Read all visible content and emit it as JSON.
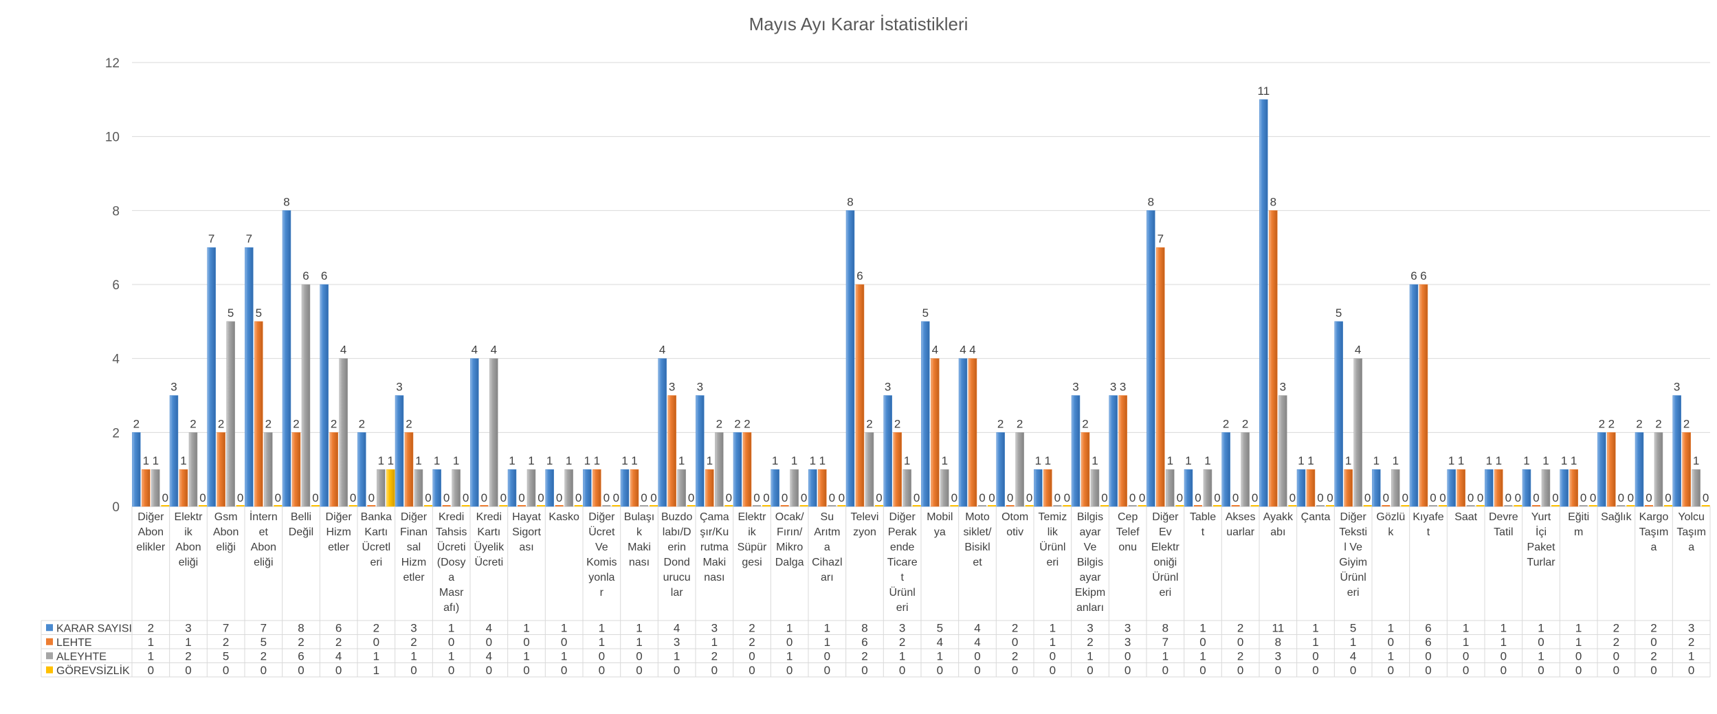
{
  "chart_data": {
    "type": "bar",
    "title": "Mayıs Ayı Karar İstatistikleri",
    "ylim": [
      0,
      12
    ],
    "yticks": [
      0,
      2,
      4,
      6,
      8,
      10,
      12
    ],
    "grid": true,
    "legend": "data-table-below",
    "categories": [
      [
        "Diğer",
        "Abon",
        "elikler"
      ],
      [
        "Elektr",
        "ik",
        "Abon",
        "eliği"
      ],
      [
        "Gsm",
        "Abon",
        "eliği"
      ],
      [
        "İntern",
        "et",
        "Abon",
        "eliği"
      ],
      [
        "Belli",
        "Değil"
      ],
      [
        "Diğer",
        "Hizm",
        "etler"
      ],
      [
        "Banka",
        "Kartı",
        "Ücretl",
        "eri"
      ],
      [
        "Diğer",
        "Finan",
        "sal",
        "Hizm",
        "etler"
      ],
      [
        "Kredi",
        "Tahsis",
        "Ücreti",
        "(Dosy",
        "a",
        "Masr",
        "afı)"
      ],
      [
        "Kredi",
        "Kartı",
        "Üyelik",
        "Ücreti"
      ],
      [
        "Hayat",
        "Sigort",
        "ası"
      ],
      [
        "Kasko"
      ],
      [
        "Diğer",
        "Ücret",
        "Ve",
        "Komis",
        "yonla",
        "r"
      ],
      [
        "Bulaşı",
        "k",
        "Maki",
        "nası"
      ],
      [
        "Buzdo",
        "labı/D",
        "erin",
        "Dond",
        "urucu",
        "lar"
      ],
      [
        "Çama",
        "şır/Ku",
        "rutma",
        "Maki",
        "nası"
      ],
      [
        "Elektr",
        "ik",
        "Süpür",
        "gesi"
      ],
      [
        "Ocak/",
        "Fırın/",
        "Mikro",
        "Dalga"
      ],
      [
        "Su",
        "Arıtm",
        "a",
        "Cihazl",
        "arı"
      ],
      [
        "Televi",
        "zyon"
      ],
      [
        "Diğer",
        "Perak",
        "ende",
        "Ticare",
        "t",
        "Ürünl",
        "eri"
      ],
      [
        "Mobil",
        "ya"
      ],
      [
        "Moto",
        "siklet/",
        "Bisikl",
        "et"
      ],
      [
        "Otom",
        "otiv"
      ],
      [
        "Temiz",
        "lik",
        "Ürünl",
        "eri"
      ],
      [
        "Bilgis",
        "ayar",
        "Ve",
        "Bilgis",
        "ayar",
        "Ekipm",
        "anları"
      ],
      [
        "Cep",
        "Telef",
        "onu"
      ],
      [
        "Diğer",
        "Ev",
        "Elektr",
        "oniği",
        "Ürünl",
        "eri"
      ],
      [
        "Table",
        "t"
      ],
      [
        "Akses",
        "uarlar"
      ],
      [
        "Ayakk",
        "abı"
      ],
      [
        "Çanta"
      ],
      [
        "Diğer",
        "Teksti",
        "l Ve",
        "Giyim",
        "Ürünl",
        "eri"
      ],
      [
        "Gözlü",
        "k"
      ],
      [
        "Kıyafe",
        "t"
      ],
      [
        "Saat"
      ],
      [
        "Devre",
        "Tatil"
      ],
      [
        "Yurt",
        "İçi",
        "Paket",
        "Turlar"
      ],
      [
        "Eğiti",
        "m"
      ],
      [
        "Sağlık"
      ],
      [
        "Kargo",
        "Taşım",
        "a"
      ],
      [
        "Yolcu",
        "Taşım",
        "a"
      ]
    ],
    "series": [
      {
        "name": "KARAR SAYISI",
        "color": "#4a8ad0",
        "values": [
          2,
          3,
          7,
          7,
          8,
          6,
          2,
          3,
          1,
          4,
          1,
          1,
          1,
          1,
          4,
          3,
          2,
          1,
          1,
          8,
          3,
          5,
          4,
          2,
          1,
          3,
          3,
          8,
          1,
          2,
          11,
          1,
          5,
          1,
          6,
          1,
          1,
          1,
          1,
          2,
          2,
          3
        ]
      },
      {
        "name": "LEHTE",
        "color": "#ed7d31",
        "values": [
          1,
          1,
          2,
          5,
          2,
          2,
          0,
          2,
          0,
          0,
          0,
          0,
          1,
          1,
          3,
          1,
          2,
          0,
          1,
          6,
          2,
          4,
          4,
          0,
          1,
          2,
          3,
          7,
          0,
          0,
          8,
          1,
          1,
          0,
          6,
          1,
          1,
          0,
          1,
          2,
          0,
          2
        ]
      },
      {
        "name": "ALEYHTE",
        "color": "#a5a5a5",
        "values": [
          1,
          2,
          5,
          2,
          6,
          4,
          1,
          1,
          1,
          4,
          1,
          1,
          0,
          0,
          1,
          2,
          0,
          1,
          0,
          2,
          1,
          1,
          0,
          2,
          0,
          1,
          0,
          1,
          1,
          2,
          3,
          0,
          4,
          1,
          0,
          0,
          0,
          1,
          0,
          0,
          2,
          1
        ]
      },
      {
        "name": "GÖREVSİZLİK",
        "color": "#ffc000",
        "values": [
          0,
          0,
          0,
          0,
          0,
          0,
          1,
          0,
          0,
          0,
          0,
          0,
          0,
          0,
          0,
          0,
          0,
          0,
          0,
          0,
          0,
          0,
          0,
          0,
          0,
          0,
          0,
          0,
          0,
          0,
          0,
          0,
          0,
          0,
          0,
          0,
          0,
          0,
          0,
          0,
          0,
          0
        ]
      }
    ]
  }
}
